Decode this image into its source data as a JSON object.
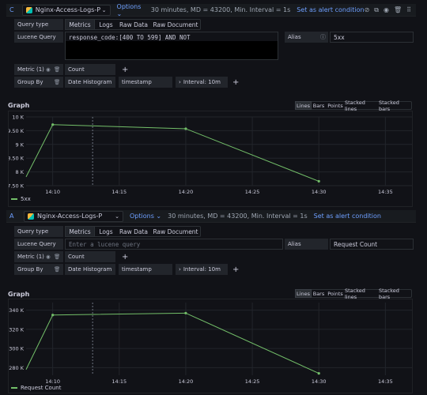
{
  "queries": [
    {
      "letter": "C",
      "datasource": "Nginx-Access-Logs-P",
      "options_label": "Options",
      "summary": "30 minutes, MD = 43200, Min. Interval = 1s",
      "alert_label": "Set as alert condition",
      "query_type_label": "Query type",
      "tabs": [
        "Metrics",
        "Logs",
        "Raw Data",
        "Raw Document"
      ],
      "lucene_label": "Lucene Query",
      "lucene_value": "response_code:[400 TO 599] AND NOT",
      "alias_label": "Alias",
      "alias_value": "5xx",
      "metric_label": "Metric (1)",
      "metric_value": "Count",
      "groupby_label": "Group By",
      "groupby_type": "Date Histogram",
      "groupby_field": "timestamp",
      "interval_label": "Interval: 10m",
      "graph_title": "Graph",
      "modes": [
        "Lines",
        "Bars",
        "Points",
        "Stacked lines",
        "Stacked bars"
      ],
      "legend": "5xx",
      "colors": {
        "series": "#73bf69"
      }
    },
    {
      "letter": "A",
      "datasource": "Nginx-Access-Logs-P",
      "options_label": "Options",
      "summary": "30 minutes, MD = 43200, Min. Interval = 1s",
      "alert_label": "Set as alert condition",
      "query_type_label": "Query type",
      "tabs": [
        "Metrics",
        "Logs",
        "Raw Data",
        "Raw Document"
      ],
      "lucene_label": "Lucene Query",
      "lucene_placeholder": "Enter a lucene query",
      "alias_label": "Alias",
      "alias_value": "Request Count",
      "metric_label": "Metric (1)",
      "metric_value": "Count",
      "groupby_label": "Group By",
      "groupby_type": "Date Histogram",
      "groupby_field": "timestamp",
      "interval_label": "Interval: 10m",
      "graph_title": "Graph",
      "modes": [
        "Lines",
        "Bars",
        "Points",
        "Stacked lines",
        "Stacked bars"
      ],
      "legend": "Request Count",
      "colors": {
        "series": "#73bf69"
      }
    }
  ],
  "chart_data": [
    {
      "type": "line",
      "x_ticks": [
        "14:10",
        "14:15",
        "14:20",
        "14:25",
        "14:30",
        "14:35"
      ],
      "y_ticks": [
        "7.50 K",
        "8 K",
        "8.50 K",
        "9 K",
        "9.50 K",
        "10 K"
      ],
      "ylim": [
        7500,
        10000
      ],
      "series": [
        {
          "name": "5xx",
          "x": [
            "14:08",
            "14:10",
            "14:20",
            "14:30"
          ],
          "values": [
            7820,
            9720,
            9570,
            7660
          ]
        }
      ],
      "grid": true,
      "legend_position": "bottom-left"
    },
    {
      "type": "line",
      "x_ticks": [
        "14:10",
        "14:15",
        "14:20",
        "14:25",
        "14:30",
        "14:35"
      ],
      "y_ticks": [
        "280 K",
        "300 K",
        "320 K",
        "340 K"
      ],
      "ylim": [
        272000,
        348000
      ],
      "series": [
        {
          "name": "Request Count",
          "x": [
            "14:08",
            "14:10",
            "14:20",
            "14:30"
          ],
          "values": [
            278000,
            335000,
            337000,
            274000
          ]
        }
      ],
      "grid": true,
      "legend_position": "bottom-left"
    }
  ]
}
